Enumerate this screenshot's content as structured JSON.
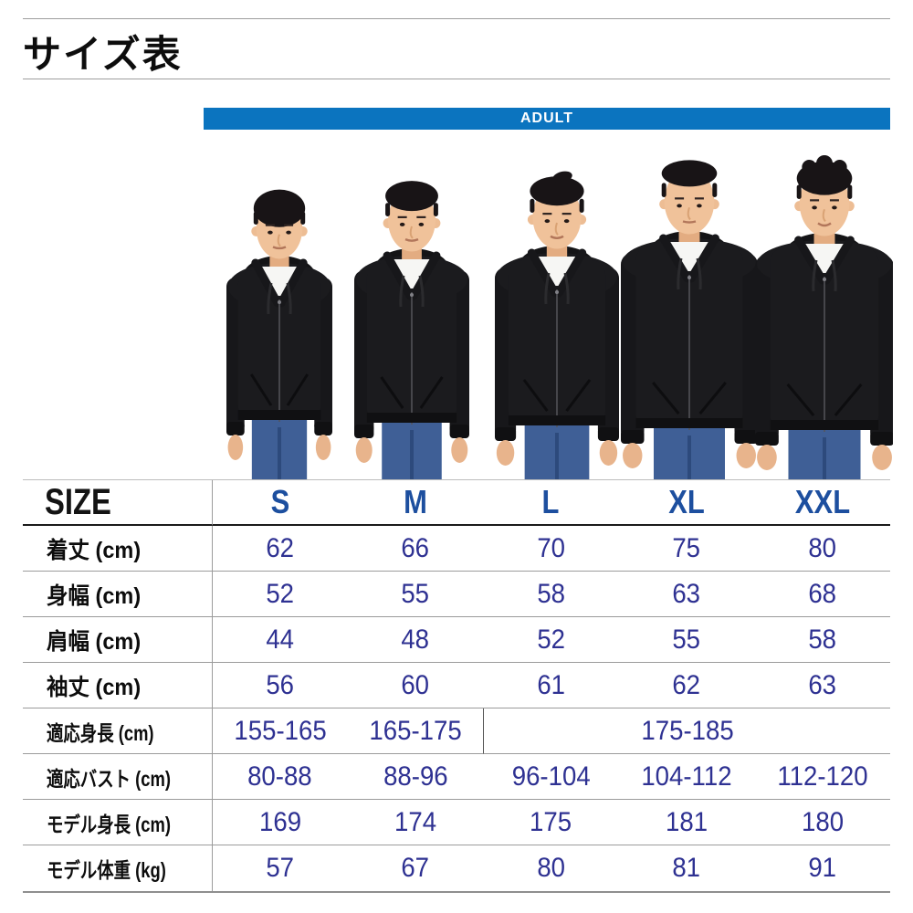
{
  "page_title": "サイズ表",
  "banner": {
    "label": "ADULT",
    "bg_color": "#0b74bf",
    "text_color": "#ffffff"
  },
  "colors": {
    "size_header_blue": "#1d4f9f",
    "value_navy": "#2e3192",
    "banner_blue": "#0b74bf"
  },
  "size_table": {
    "corner_label": "SIZE",
    "sizes": [
      "S",
      "M",
      "L",
      "XL",
      "XXL"
    ],
    "rows": [
      {
        "label": "着丈 (cm)",
        "values": [
          "62",
          "66",
          "70",
          "75",
          "80"
        ]
      },
      {
        "label": "身幅 (cm)",
        "values": [
          "52",
          "55",
          "58",
          "63",
          "68"
        ]
      },
      {
        "label": "肩幅 (cm)",
        "values": [
          "44",
          "48",
          "52",
          "55",
          "58"
        ]
      },
      {
        "label": "袖丈 (cm)",
        "values": [
          "56",
          "60",
          "61",
          "62",
          "63"
        ]
      },
      {
        "label": "適応身長 (cm)",
        "values": [
          "155-165",
          "165-175",
          {
            "text": "175-185",
            "span": 3
          }
        ]
      },
      {
        "label": "適応バスト (cm)",
        "values": [
          "80-88",
          "88-96",
          "96-104",
          "104-112",
          "112-120"
        ]
      },
      {
        "label": "モデル身長 (cm)",
        "values": [
          "169",
          "174",
          "175",
          "181",
          "180"
        ]
      },
      {
        "label": "モデル体重 (kg)",
        "values": [
          "57",
          "67",
          "80",
          "81",
          "91"
        ]
      }
    ]
  }
}
